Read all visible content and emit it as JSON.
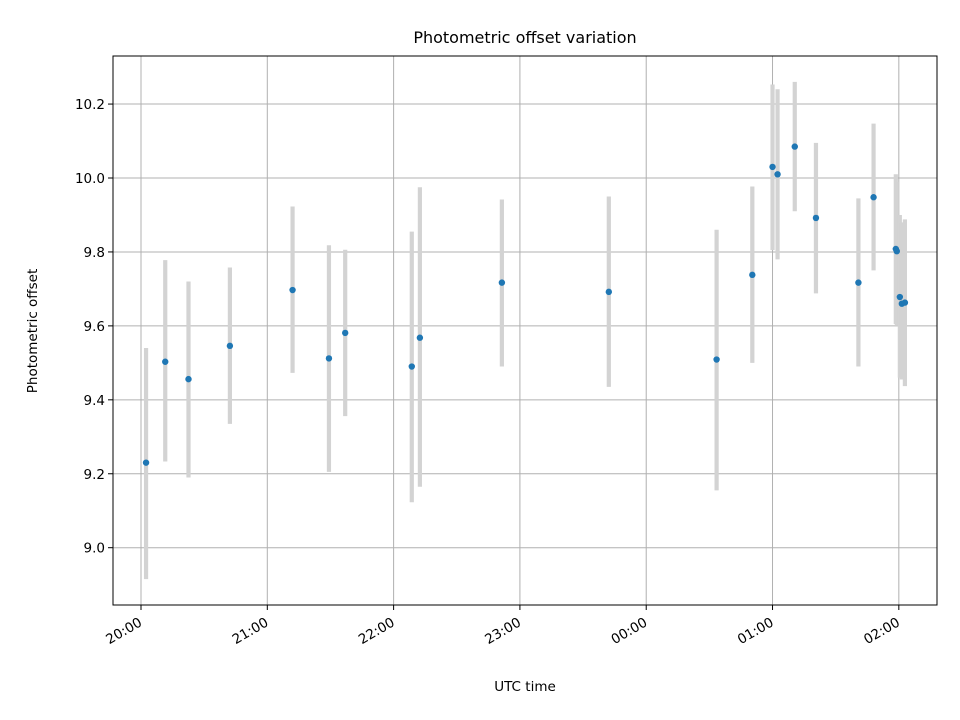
{
  "chart_data": {
    "type": "scatter",
    "title": "Photometric offset variation",
    "xlabel": "UTC time",
    "ylabel": "Photometric offset",
    "xlim": [
      "2021-01-01T19:46:42",
      "2021-01-02T02:18:08"
    ],
    "ylim": [
      8.845,
      10.33
    ],
    "x_ticks": [
      {
        "t": "2021-01-01T20:00:00",
        "label": "20:00"
      },
      {
        "t": "2021-01-01T21:00:00",
        "label": "21:00"
      },
      {
        "t": "2021-01-01T22:00:00",
        "label": "22:00"
      },
      {
        "t": "2021-01-01T23:00:00",
        "label": "23:00"
      },
      {
        "t": "2021-01-02T00:00:00",
        "label": "00:00"
      },
      {
        "t": "2021-01-02T01:00:00",
        "label": "01:00"
      },
      {
        "t": "2021-01-02T02:00:00",
        "label": "02:00"
      }
    ],
    "y_ticks": [
      {
        "v": 9.0,
        "label": "9.0"
      },
      {
        "v": 9.2,
        "label": "9.2"
      },
      {
        "v": 9.4,
        "label": "9.4"
      },
      {
        "v": 9.6,
        "label": "9.6"
      },
      {
        "v": 9.8,
        "label": "9.8"
      },
      {
        "v": 10.0,
        "label": "10.0"
      },
      {
        "v": 10.2,
        "label": "10.2"
      }
    ],
    "grid": true,
    "colors": {
      "points": "#1f77b4",
      "error_bars": "#d3d3d3"
    },
    "series": [
      {
        "points": [
          {
            "t": "2021-01-01T20:02:24",
            "y": 9.23,
            "lo": 8.915,
            "hi": 9.54
          },
          {
            "t": "2021-01-01T20:11:31",
            "y": 9.503,
            "lo": 9.233,
            "hi": 9.778
          },
          {
            "t": "2021-01-01T20:22:34",
            "y": 9.456,
            "lo": 9.19,
            "hi": 9.72
          },
          {
            "t": "2021-01-01T20:42:14",
            "y": 9.546,
            "lo": 9.335,
            "hi": 9.758
          },
          {
            "t": "2021-01-01T21:12:00",
            "y": 9.697,
            "lo": 9.473,
            "hi": 9.923
          },
          {
            "t": "2021-01-01T21:29:17",
            "y": 9.512,
            "lo": 9.205,
            "hi": 9.818
          },
          {
            "t": "2021-01-01T21:37:00",
            "y": 9.581,
            "lo": 9.356,
            "hi": 9.806
          },
          {
            "t": "2021-01-01T22:08:38",
            "y": 9.49,
            "lo": 9.123,
            "hi": 9.855
          },
          {
            "t": "2021-01-01T22:12:29",
            "y": 9.568,
            "lo": 9.165,
            "hi": 9.975
          },
          {
            "t": "2021-01-01T22:51:26",
            "y": 9.717,
            "lo": 9.49,
            "hi": 9.942
          },
          {
            "t": "2021-01-01T23:42:14",
            "y": 9.692,
            "lo": 9.435,
            "hi": 9.95
          },
          {
            "t": "2021-01-02T00:33:26",
            "y": 9.509,
            "lo": 9.155,
            "hi": 9.86
          },
          {
            "t": "2021-01-02T00:50:24",
            "y": 9.738,
            "lo": 9.5,
            "hi": 9.977
          },
          {
            "t": "2021-01-02T01:00:00",
            "y": 10.03,
            "lo": 9.805,
            "hi": 10.253
          },
          {
            "t": "2021-01-02T01:02:24",
            "y": 10.01,
            "lo": 9.78,
            "hi": 10.24
          },
          {
            "t": "2021-01-02T01:10:34",
            "y": 10.085,
            "lo": 9.91,
            "hi": 10.26
          },
          {
            "t": "2021-01-02T01:20:38",
            "y": 9.892,
            "lo": 9.688,
            "hi": 10.095
          },
          {
            "t": "2021-01-02T01:40:48",
            "y": 9.717,
            "lo": 9.49,
            "hi": 9.945
          },
          {
            "t": "2021-01-02T01:48:00",
            "y": 9.948,
            "lo": 9.75,
            "hi": 10.147
          },
          {
            "t": "2021-01-02T01:58:34",
            "y": 9.808,
            "lo": 9.605,
            "hi": 10.01
          },
          {
            "t": "2021-01-02T01:59:02",
            "y": 9.802,
            "lo": 9.6,
            "hi": 9.99
          },
          {
            "t": "2021-01-02T02:00:29",
            "y": 9.678,
            "lo": 9.46,
            "hi": 9.9
          },
          {
            "t": "2021-01-02T02:01:26",
            "y": 9.66,
            "lo": 9.455,
            "hi": 9.88
          },
          {
            "t": "2021-01-02T02:02:53",
            "y": 9.663,
            "lo": 9.437,
            "hi": 9.888
          }
        ]
      }
    ]
  }
}
